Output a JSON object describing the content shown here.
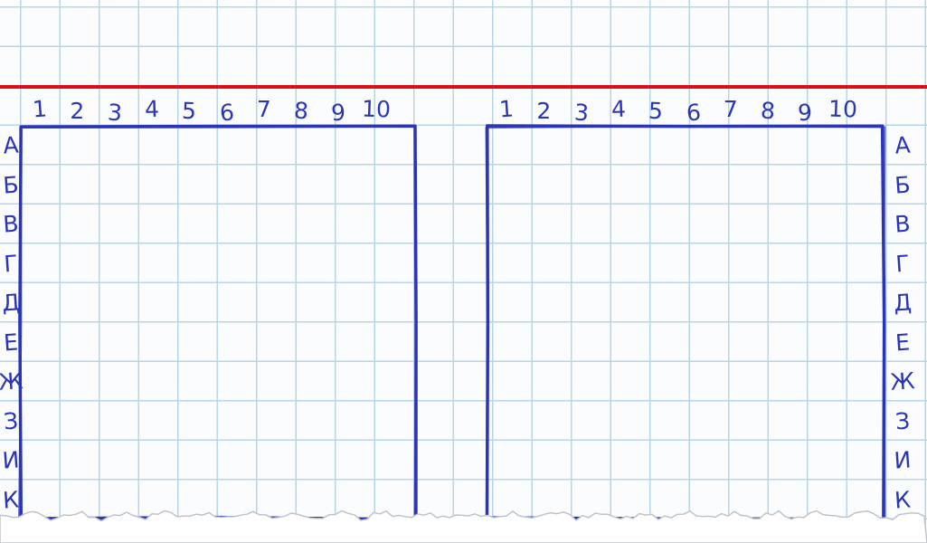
{
  "colors": {
    "ink": "#2a35b8",
    "grid": "#b9d4e6",
    "margin": "#d90f14",
    "paper": "#fbfcfe"
  },
  "boards": [
    {
      "id": "player",
      "columns": [
        "1",
        "2",
        "3",
        "4",
        "5",
        "6",
        "7",
        "8",
        "9",
        "10"
      ],
      "rows": [
        "А",
        "Б",
        "В",
        "Г",
        "Д",
        "Е",
        "Ж",
        "З",
        "И",
        "К"
      ],
      "row_labels_side": "left"
    },
    {
      "id": "opponent",
      "columns": [
        "1",
        "2",
        "3",
        "4",
        "5",
        "6",
        "7",
        "8",
        "9",
        "10"
      ],
      "rows": [
        "А",
        "Б",
        "В",
        "Г",
        "Д",
        "Е",
        "Ж",
        "З",
        "И",
        "К"
      ],
      "row_labels_side": "right"
    }
  ]
}
